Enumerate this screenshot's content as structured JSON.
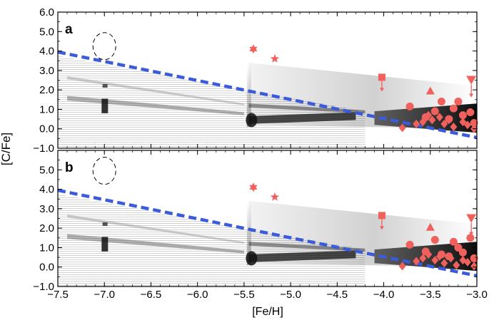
{
  "chart_data": {
    "type": "scatter",
    "xlabel": "[Fe/H]",
    "ylabel": "[C/Fe]",
    "xlim": [
      -7.5,
      -3.0
    ],
    "x_ticks": [
      "−7.5",
      "−7.0",
      "−6.5",
      "−6.0",
      "−5.5",
      "−5.0",
      "−4.5",
      "−4.0",
      "−3.5",
      "−3.0"
    ],
    "colors": {
      "stars": "#f0615e",
      "threshold": "#3b5bdb",
      "density": "#111111"
    },
    "panels": [
      {
        "label": "a",
        "ylim": [
          -1.0,
          6.0
        ],
        "y_ticks": [
          "−1.0",
          "0.0",
          "1.0",
          "2.0",
          "3.0",
          "4.0",
          "5.0",
          "6.0"
        ],
        "threshold_line": {
          "x": [
            -7.5,
            -3.0
          ],
          "y": [
            3.95,
            -0.45
          ]
        },
        "ellipse": {
          "x": -7.0,
          "y": 4.25
        },
        "observed_stars": [
          {
            "x": -5.4,
            "y": 4.1,
            "marker": "star6"
          },
          {
            "x": -5.17,
            "y": 3.6,
            "marker": "star5"
          },
          {
            "x": -4.02,
            "y": 2.65,
            "marker": "square-limit"
          },
          {
            "x": -3.5,
            "y": 1.95,
            "marker": "triangle"
          },
          {
            "x": -3.06,
            "y": 2.5,
            "marker": "triangle-down-limit"
          },
          {
            "x": -3.72,
            "y": 1.15,
            "marker": "circle"
          },
          {
            "x": -3.55,
            "y": 0.6,
            "marker": "circle"
          },
          {
            "x": -3.45,
            "y": 0.9,
            "marker": "circle"
          },
          {
            "x": -3.38,
            "y": 1.4,
            "marker": "circle"
          },
          {
            "x": -3.3,
            "y": 0.5,
            "marker": "circle"
          },
          {
            "x": -3.25,
            "y": 1.05,
            "marker": "circle"
          },
          {
            "x": -3.2,
            "y": 1.4,
            "marker": "circle"
          },
          {
            "x": -3.15,
            "y": 0.7,
            "marker": "circle"
          },
          {
            "x": -3.07,
            "y": 0.85,
            "marker": "circle"
          },
          {
            "x": -3.03,
            "y": 0.3,
            "marker": "circle"
          },
          {
            "x": -3.8,
            "y": 0.05,
            "marker": "diamond"
          },
          {
            "x": -3.65,
            "y": 0.25,
            "marker": "diamond"
          },
          {
            "x": -3.58,
            "y": 0.35,
            "marker": "diamond"
          },
          {
            "x": -3.52,
            "y": 0.7,
            "marker": "diamond"
          },
          {
            "x": -3.48,
            "y": 0.45,
            "marker": "diamond"
          },
          {
            "x": -3.4,
            "y": 0.6,
            "marker": "diamond"
          },
          {
            "x": -3.35,
            "y": 0.25,
            "marker": "diamond"
          },
          {
            "x": -3.3,
            "y": 0.45,
            "marker": "diamond"
          },
          {
            "x": -3.25,
            "y": 0.1,
            "marker": "diamond"
          },
          {
            "x": -3.15,
            "y": 0.35,
            "marker": "diamond"
          },
          {
            "x": -3.1,
            "y": 0.2,
            "marker": "diamond"
          },
          {
            "x": -3.03,
            "y": 0.0,
            "marker": "diamond"
          }
        ]
      },
      {
        "label": "b",
        "ylim": [
          -1.0,
          6.0
        ],
        "y_ticks": [
          "−1.0",
          "0.0",
          "1.0",
          "2.0",
          "3.0",
          "4.0",
          "5.0"
        ],
        "threshold_line": {
          "x": [
            -7.5,
            -3.0
          ],
          "y": [
            3.95,
            -0.45
          ]
        },
        "ellipse": {
          "x": -7.0,
          "y": 4.95
        },
        "observed_stars": [
          {
            "x": -5.4,
            "y": 4.1,
            "marker": "star6"
          },
          {
            "x": -5.17,
            "y": 3.6,
            "marker": "star5"
          },
          {
            "x": -4.02,
            "y": 2.65,
            "marker": "square-limit"
          },
          {
            "x": -3.5,
            "y": 2.05,
            "marker": "triangle"
          },
          {
            "x": -3.06,
            "y": 2.5,
            "marker": "triangle-down-limit"
          },
          {
            "x": -3.72,
            "y": 1.15,
            "marker": "circle"
          },
          {
            "x": -3.55,
            "y": 0.8,
            "marker": "circle"
          },
          {
            "x": -3.45,
            "y": 1.4,
            "marker": "circle"
          },
          {
            "x": -3.38,
            "y": 0.65,
            "marker": "circle"
          },
          {
            "x": -3.3,
            "y": 0.55,
            "marker": "circle"
          },
          {
            "x": -3.25,
            "y": 1.3,
            "marker": "circle"
          },
          {
            "x": -3.2,
            "y": 1.0,
            "marker": "circle"
          },
          {
            "x": -3.15,
            "y": 0.75,
            "marker": "circle"
          },
          {
            "x": -3.07,
            "y": 1.5,
            "marker": "circle"
          },
          {
            "x": -3.03,
            "y": 0.45,
            "marker": "circle"
          },
          {
            "x": -3.8,
            "y": 0.05,
            "marker": "diamond"
          },
          {
            "x": -3.65,
            "y": 0.3,
            "marker": "diamond"
          },
          {
            "x": -3.58,
            "y": 0.45,
            "marker": "diamond"
          },
          {
            "x": -3.52,
            "y": 0.65,
            "marker": "diamond"
          },
          {
            "x": -3.45,
            "y": 0.35,
            "marker": "diamond"
          },
          {
            "x": -3.4,
            "y": 0.55,
            "marker": "diamond"
          },
          {
            "x": -3.35,
            "y": 0.2,
            "marker": "diamond"
          },
          {
            "x": -3.28,
            "y": 0.45,
            "marker": "diamond"
          },
          {
            "x": -3.22,
            "y": 0.1,
            "marker": "diamond"
          },
          {
            "x": -3.15,
            "y": 0.35,
            "marker": "diamond"
          },
          {
            "x": -3.1,
            "y": 0.25,
            "marker": "diamond"
          },
          {
            "x": -3.03,
            "y": 0.05,
            "marker": "diamond"
          }
        ]
      }
    ]
  }
}
